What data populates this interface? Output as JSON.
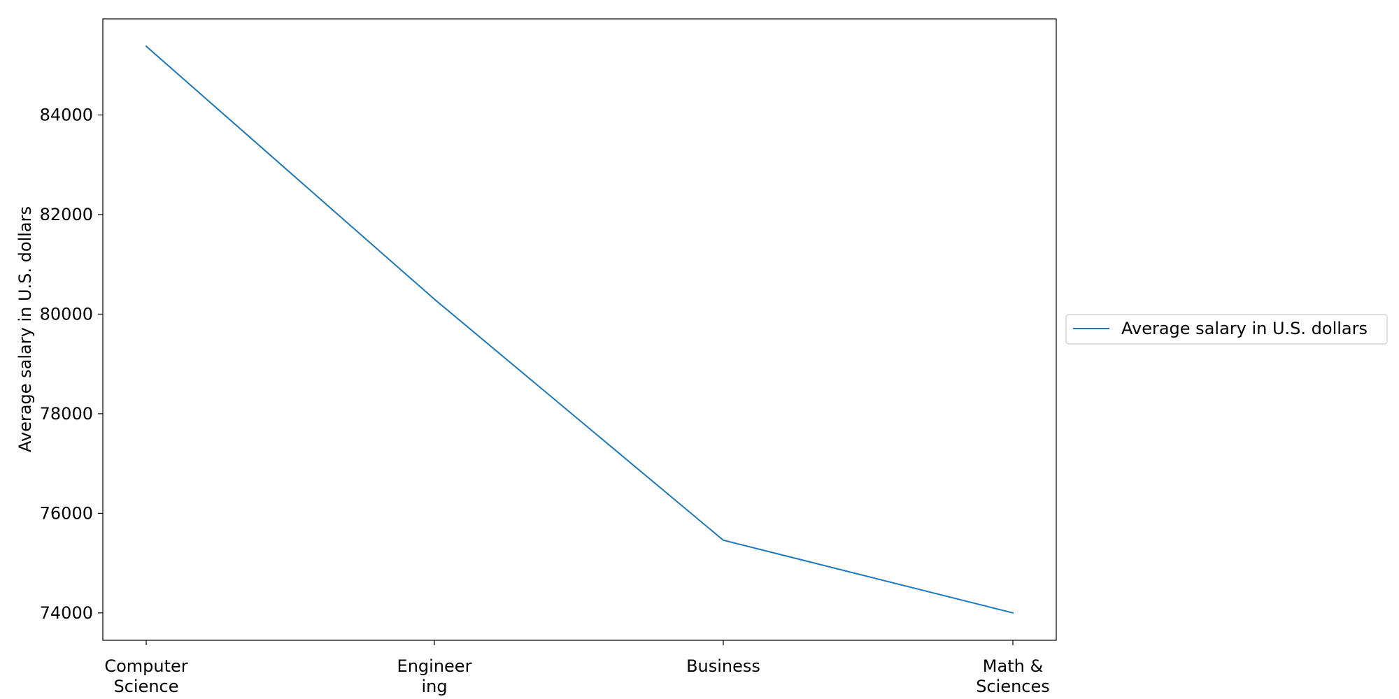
{
  "chart_data": {
    "type": "line",
    "categories": [
      [
        "Computer",
        "Science"
      ],
      [
        "Engineer",
        "ing"
      ],
      [
        "Business"
      ],
      [
        "Math &",
        "Sciences"
      ]
    ],
    "series": [
      {
        "name": "Average salary in U.S. dollars",
        "values": [
          85380,
          80300,
          75460,
          74000
        ],
        "color": "#1f77b4"
      }
    ],
    "xlabel": "",
    "ylabel": "Average salary in U.S. dollars",
    "ylim": [
      73450,
      85930
    ],
    "yticks": [
      74000,
      76000,
      78000,
      80000,
      82000,
      84000
    ],
    "grid": false,
    "legend_position": "right"
  }
}
